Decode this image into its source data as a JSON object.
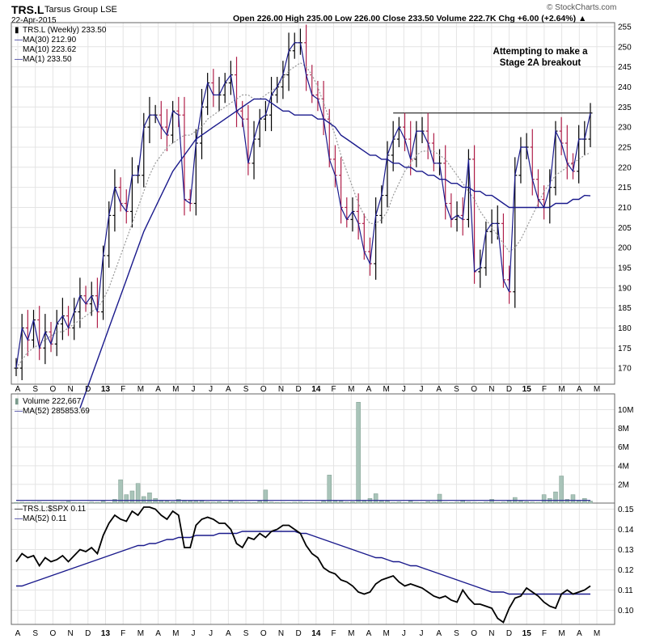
{
  "header": {
    "symbol": "TRS.L",
    "company": "Tarsus Group LSE",
    "date": "22-Apr-2015",
    "quote": "Open 226.00  High 235.00  Low 226.00  Close 233.50  Volume 222.7K  Chg +6.00 (+2.64%)",
    "change_arrow": "▲",
    "brand": "© StockCharts.com"
  },
  "annotation": {
    "line1": "Attempting to make a",
    "line2": "Stage 2A breakout"
  },
  "price_legend": {
    "main": "TRS.L (Weekly) 233.50",
    "ma30": "MA(30) 212.90",
    "ma10": "MA(10) 223.62",
    "ma1": "MA(1) 233.50"
  },
  "volume_legend": {
    "main": "Volume 222,667",
    "ma52": "MA(52) 285853.69"
  },
  "ratio_legend": {
    "main": "TRS.L:$SPX 0.11",
    "ma52": "MA(52) 0.11"
  },
  "colors": {
    "up_bar": "#000000",
    "down_bar": "#b0204a",
    "ma_blue": "#1a1a8c",
    "ma10_dotted": "#999999",
    "volume_bar": "#a9c4b9",
    "grid": "#e4e4e4",
    "resistance": "#000000"
  },
  "chart_data": [
    {
      "type": "line",
      "title": "TRS.L (Weekly)",
      "x_ticks": [
        "A",
        "S",
        "O",
        "N",
        "D",
        "13",
        "F",
        "M",
        "A",
        "M",
        "J",
        "J",
        "A",
        "S",
        "O",
        "N",
        "D",
        "14",
        "F",
        "M",
        "A",
        "M",
        "J",
        "J",
        "A",
        "S",
        "O",
        "N",
        "D",
        "15",
        "F",
        "M",
        "A",
        "M"
      ],
      "ylim": [
        166,
        256
      ],
      "y_ticks": [
        170,
        175,
        180,
        185,
        190,
        195,
        200,
        205,
        210,
        215,
        220,
        225,
        230,
        235,
        240,
        245,
        250,
        255
      ],
      "resistance_level": 233.5,
      "series": [
        {
          "name": "Close (MA(1))",
          "values": [
            170,
            180,
            177,
            182,
            175,
            179,
            176,
            181,
            183,
            180,
            184,
            188,
            186,
            188,
            184,
            198,
            208,
            215,
            211,
            209,
            218,
            218,
            230,
            233,
            233,
            230,
            228,
            234,
            233,
            212,
            211,
            226,
            235,
            241,
            238,
            238,
            241,
            243,
            234,
            232,
            221,
            227,
            232,
            233,
            238,
            240,
            243,
            249,
            251,
            251,
            243,
            238,
            237,
            232,
            222,
            218,
            210,
            207,
            209,
            206,
            199,
            196,
            208,
            213,
            223,
            227,
            230,
            227,
            222,
            229,
            229,
            226,
            221,
            221,
            211,
            207,
            208,
            207,
            222,
            194,
            195,
            204,
            206,
            206,
            192,
            189,
            218,
            225,
            225,
            217,
            212,
            210,
            215,
            229,
            226,
            221,
            219,
            227,
            227,
            233.5
          ]
        },
        {
          "name": "MA(30)",
          "values": [
            null,
            null,
            null,
            null,
            null,
            null,
            null,
            null,
            null,
            null,
            null,
            160,
            164,
            168,
            172,
            176,
            180,
            184,
            188,
            192,
            196,
            200,
            204,
            207,
            210,
            213,
            216,
            219,
            221,
            223,
            225,
            227,
            228,
            229,
            230,
            231,
            232,
            233,
            234,
            235,
            236,
            237,
            237,
            237,
            236,
            235,
            234,
            234,
            233,
            233,
            233,
            233,
            232,
            232,
            231,
            230,
            228,
            227,
            226,
            225,
            224,
            223,
            223,
            222,
            222,
            221,
            221,
            220,
            220,
            219,
            219,
            218,
            218,
            217,
            217,
            216,
            216,
            215,
            215,
            214,
            214,
            213,
            213,
            212,
            211,
            210,
            210,
            210,
            210,
            210,
            210,
            210,
            210,
            211,
            211,
            211,
            212,
            212,
            213,
            212.9
          ]
        },
        {
          "name": "MA(10)",
          "values": [
            170,
            172,
            174,
            175,
            176,
            177,
            178,
            179,
            179,
            180,
            181,
            182,
            183,
            184,
            185,
            187,
            190,
            194,
            198,
            202,
            206,
            210,
            214,
            218,
            221,
            223,
            225,
            226,
            227,
            228,
            228,
            229,
            230,
            232,
            233,
            234,
            235,
            236,
            237,
            238,
            238,
            237,
            237,
            238,
            239,
            240,
            242,
            244,
            245,
            246,
            245,
            243,
            240,
            236,
            232,
            228,
            223,
            219,
            215,
            211,
            208,
            206,
            206,
            207,
            209,
            213,
            216,
            219,
            221,
            223,
            224,
            224,
            224,
            223,
            222,
            220,
            218,
            216,
            214,
            212,
            209,
            207,
            205,
            203,
            201,
            199,
            200,
            202,
            205,
            208,
            211,
            214,
            216,
            218,
            219,
            220,
            221,
            222,
            223,
            223.62
          ]
        },
        {
          "name": "TRS.L:$SPX",
          "values": [
            0.124,
            0.128,
            0.126,
            0.127,
            0.122,
            0.126,
            0.124,
            0.125,
            0.127,
            0.124,
            0.127,
            0.13,
            0.129,
            0.131,
            0.128,
            0.137,
            0.143,
            0.147,
            0.145,
            0.144,
            0.149,
            0.147,
            0.151,
            0.151,
            0.15,
            0.147,
            0.145,
            0.149,
            0.147,
            0.131,
            0.131,
            0.142,
            0.145,
            0.146,
            0.145,
            0.143,
            0.143,
            0.14,
            0.133,
            0.131,
            0.136,
            0.135,
            0.138,
            0.136,
            0.139,
            0.14,
            0.142,
            0.142,
            0.14,
            0.138,
            0.132,
            0.128,
            0.126,
            0.121,
            0.119,
            0.118,
            0.115,
            0.114,
            0.112,
            0.109,
            0.108,
            0.109,
            0.113,
            0.115,
            0.116,
            0.117,
            0.114,
            0.112,
            0.113,
            0.112,
            0.111,
            0.109,
            0.107,
            0.106,
            0.107,
            0.105,
            0.104,
            0.11,
            0.106,
            0.103,
            0.103,
            0.102,
            0.101,
            0.096,
            0.094,
            0.101,
            0.106,
            0.107,
            0.111,
            0.109,
            0.107,
            0.104,
            0.102,
            0.101,
            0.108,
            0.11,
            0.108,
            0.109,
            0.11,
            0.112
          ]
        },
        {
          "name": "Ratio MA(52)",
          "values": [
            0.112,
            0.112,
            0.113,
            0.114,
            0.115,
            0.116,
            0.117,
            0.118,
            0.119,
            0.12,
            0.121,
            0.122,
            0.123,
            0.124,
            0.125,
            0.126,
            0.127,
            0.128,
            0.129,
            0.13,
            0.131,
            0.132,
            0.132,
            0.133,
            0.133,
            0.134,
            0.135,
            0.135,
            0.136,
            0.136,
            0.136,
            0.137,
            0.137,
            0.137,
            0.137,
            0.138,
            0.138,
            0.138,
            0.138,
            0.139,
            0.139,
            0.139,
            0.139,
            0.139,
            0.139,
            0.139,
            0.139,
            0.139,
            0.139,
            0.138,
            0.138,
            0.137,
            0.136,
            0.135,
            0.134,
            0.133,
            0.132,
            0.131,
            0.13,
            0.129,
            0.128,
            0.127,
            0.126,
            0.126,
            0.125,
            0.124,
            0.124,
            0.123,
            0.122,
            0.122,
            0.121,
            0.12,
            0.119,
            0.118,
            0.117,
            0.116,
            0.115,
            0.114,
            0.113,
            0.112,
            0.111,
            0.11,
            0.109,
            0.109,
            0.109,
            0.108,
            0.108,
            0.108,
            0.108,
            0.108,
            0.108,
            0.108,
            0.108,
            0.108,
            0.108,
            0.108,
            0.108,
            0.108,
            0.108,
            0.108
          ]
        }
      ]
    },
    {
      "type": "bar",
      "title": "Volume",
      "ylim": [
        0,
        11000000
      ],
      "y_ticks": [
        2000000,
        4000000,
        6000000,
        8000000,
        10000000
      ],
      "y_tick_labels": [
        "2M",
        "4M",
        "6M",
        "8M",
        "10M"
      ],
      "ma52": 285853.69,
      "values": [
        60000,
        90000,
        70000,
        80000,
        100000,
        70000,
        60000,
        50000,
        90000,
        180000,
        70000,
        60000,
        50000,
        100000,
        80000,
        200000,
        60000,
        400000,
        2500000,
        900000,
        1300000,
        2100000,
        700000,
        1100000,
        500000,
        300000,
        200000,
        150000,
        400000,
        300000,
        250000,
        200000,
        300000,
        120000,
        100000,
        150000,
        80000,
        200000,
        120000,
        100000,
        80000,
        60000,
        200000,
        1400000,
        100000,
        70000,
        80000,
        60000,
        90000,
        100000,
        70000,
        60000,
        80000,
        200000,
        3000000,
        300000,
        200000,
        100000,
        150000,
        10800000,
        300000,
        500000,
        1000000,
        300000,
        200000,
        80000,
        120000,
        60000,
        200000,
        80000,
        60000,
        150000,
        100000,
        950000,
        80000,
        60000,
        100000,
        300000,
        100000,
        80000,
        60000,
        100000,
        400000,
        80000,
        100000,
        300000,
        600000,
        200000,
        150000,
        100000,
        80000,
        900000,
        500000,
        1200000,
        2900000,
        400000,
        900000,
        300000,
        500000,
        222667
      ]
    },
    {
      "type": "line",
      "title": "TRS.L:$SPX",
      "ylim": [
        0.093,
        0.153
      ],
      "y_ticks": [
        0.1,
        0.11,
        0.12,
        0.13,
        0.14,
        0.15
      ],
      "y_tick_labels": [
        "0.10",
        "0.11",
        "0.12",
        "0.13",
        "0.14",
        "0.15"
      ]
    }
  ]
}
